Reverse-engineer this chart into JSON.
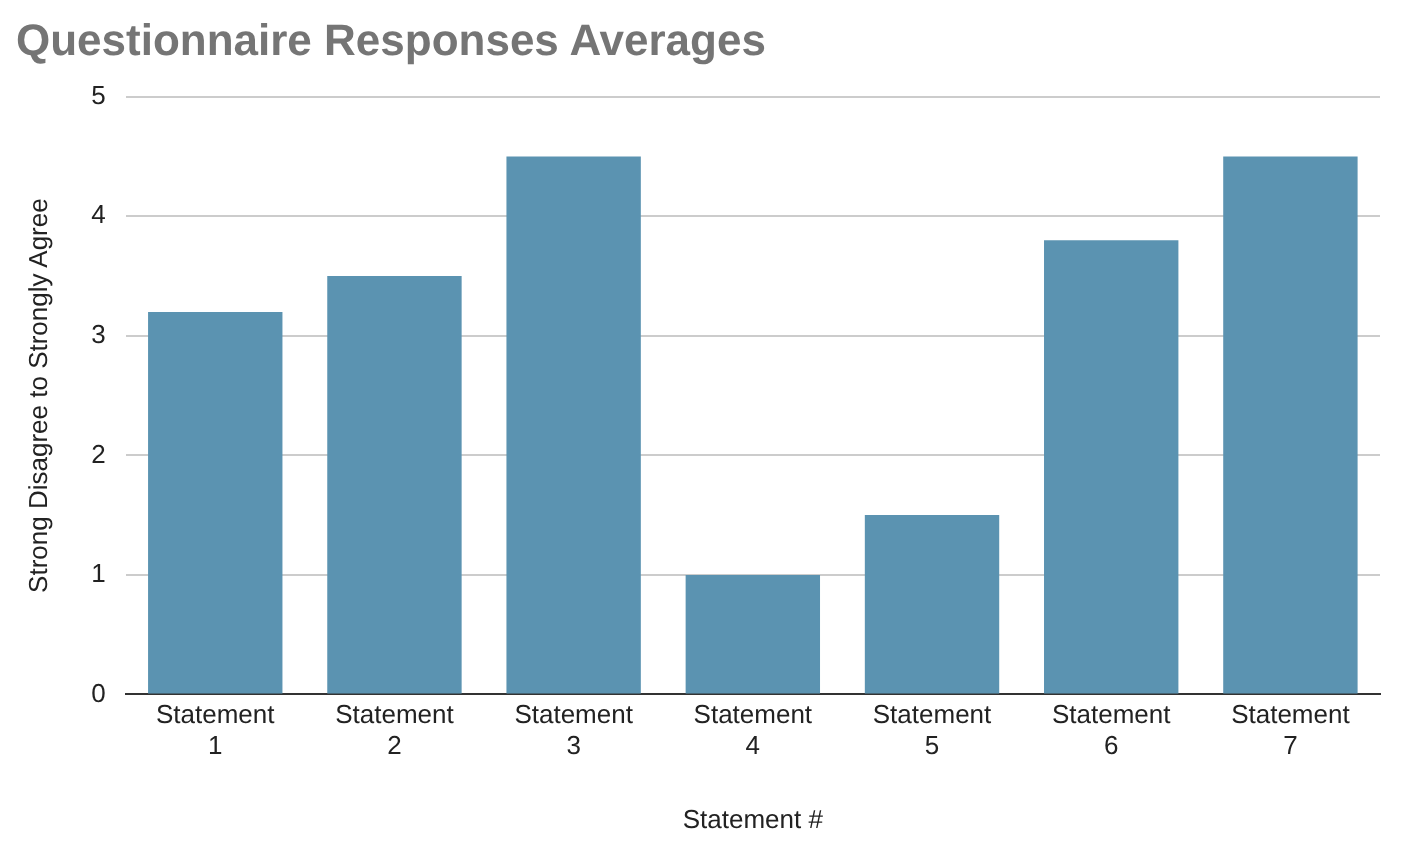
{
  "chart_data": {
    "type": "bar",
    "title": "Questionnaire Responses Averages",
    "xlabel": "Statement #",
    "ylabel": "Strong Disagree to Strongly Agree",
    "categories": [
      "Statement 1",
      "Statement 2",
      "Statement 3",
      "Statement 4",
      "Statement 5",
      "Statement 6",
      "Statement 7"
    ],
    "values": [
      3.2,
      3.5,
      4.5,
      1.0,
      1.5,
      3.8,
      4.5
    ],
    "color": "#5b93b1",
    "ylim": [
      0,
      5
    ],
    "yticks": [
      0,
      1,
      2,
      3,
      4,
      5
    ],
    "grid": "y",
    "legend": false
  }
}
